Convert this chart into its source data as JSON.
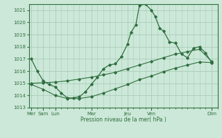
{
  "bg_color": "#cce8d8",
  "grid_color": "#aaccb8",
  "line_color": "#2d6e3e",
  "marker_color": "#2d6e3e",
  "xlabel": "Pression niveau de la mer( hPa )",
  "ylim": [
    1013.0,
    1021.5
  ],
  "yticks": [
    1013,
    1014,
    1015,
    1016,
    1017,
    1018,
    1019,
    1020,
    1021
  ],
  "x_major_positions": [
    0,
    1,
    2,
    5,
    8,
    10,
    15
  ],
  "x_major_labels": [
    "Mer",
    "Sam",
    "Lun",
    "Mar",
    "Jeu",
    "Ven",
    "Dim"
  ],
  "series1_x": [
    0,
    0.5,
    1,
    1.5,
    2,
    2.5,
    3,
    3.5,
    4,
    4.5,
    5,
    5.5,
    6,
    6.5,
    7,
    7.5,
    8,
    8.3,
    8.7,
    9,
    9.5,
    10,
    10.3,
    10.7,
    11,
    11.5,
    12,
    12.5,
    13,
    13.5,
    14,
    14.5,
    15
  ],
  "series1_y": [
    1017.0,
    1016.0,
    1015.2,
    1014.9,
    1014.7,
    1014.2,
    1013.8,
    1013.8,
    1013.9,
    1014.3,
    1014.9,
    1015.5,
    1016.2,
    1016.5,
    1016.6,
    1017.2,
    1018.2,
    1019.2,
    1019.8,
    1021.4,
    1021.5,
    1021.0,
    1020.5,
    1019.5,
    1019.3,
    1018.4,
    1018.3,
    1017.4,
    1017.1,
    1017.9,
    1018.0,
    1017.5,
    1016.7
  ],
  "series2_x": [
    0,
    1,
    2,
    3,
    4,
    5,
    6,
    7,
    8,
    9,
    10,
    11,
    12,
    13,
    14,
    15
  ],
  "series2_y": [
    1015.0,
    1015.05,
    1015.1,
    1015.2,
    1015.35,
    1015.5,
    1015.7,
    1015.9,
    1016.2,
    1016.5,
    1016.8,
    1017.1,
    1017.4,
    1017.6,
    1017.8,
    1016.8
  ],
  "series3_x": [
    0,
    1,
    2,
    3,
    4,
    5,
    6,
    7,
    8,
    9,
    10,
    11,
    12,
    13,
    14,
    15
  ],
  "series3_y": [
    1014.9,
    1014.5,
    1014.0,
    1013.75,
    1013.75,
    1013.9,
    1014.2,
    1014.55,
    1014.9,
    1015.3,
    1015.6,
    1015.95,
    1016.25,
    1016.5,
    1016.75,
    1016.7
  ]
}
